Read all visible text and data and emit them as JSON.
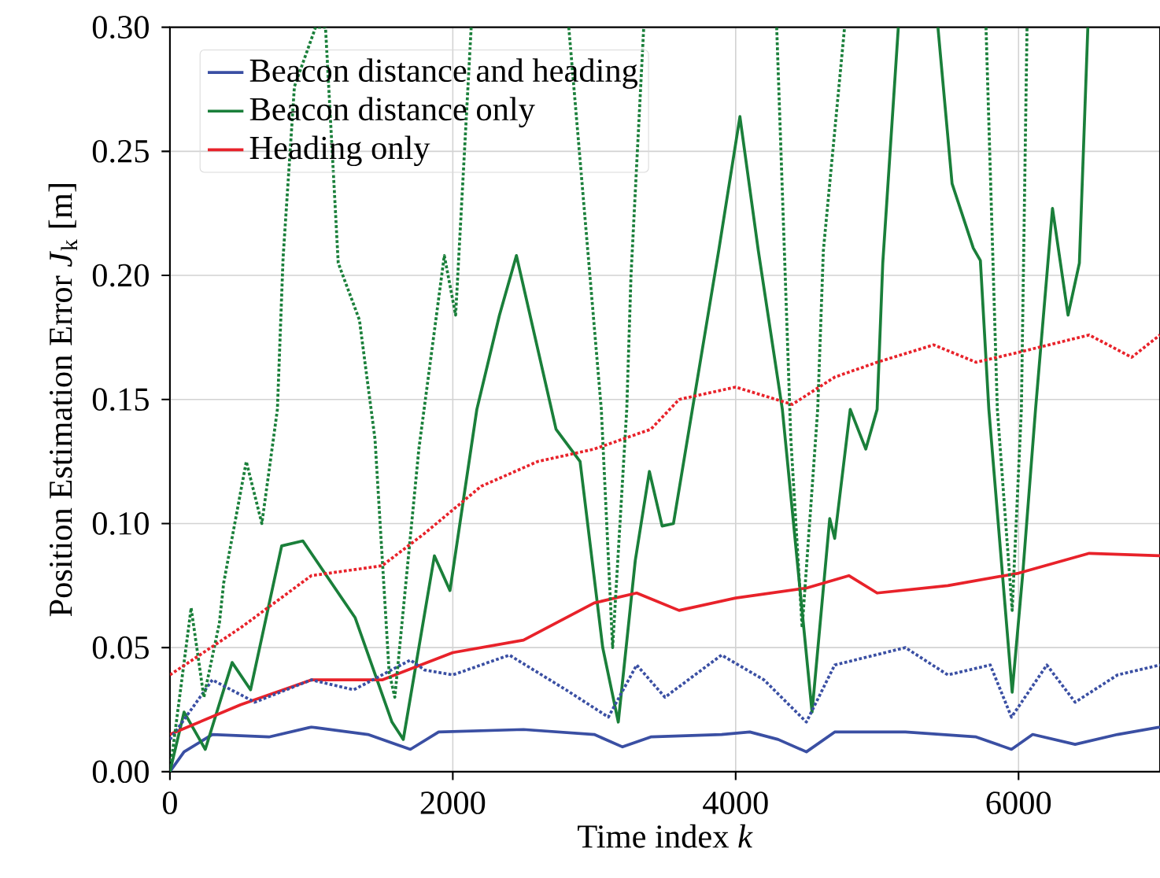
{
  "chart_data": {
    "type": "line",
    "xlabel": "Time index *k*",
    "ylabel": "Position Estimation Error *J*$_{k}$ [m]",
    "xlim": [
      0,
      7000
    ],
    "ylim": [
      0,
      0.3
    ],
    "xticks": [
      0,
      2000,
      4000,
      6000
    ],
    "yticks": [
      {
        "value": 0,
        "label": "0.00"
      },
      {
        "value": 0.05,
        "label": "0.05"
      },
      {
        "value": 0.1,
        "label": "0.10"
      },
      {
        "value": 0.15,
        "label": "0.15"
      },
      {
        "value": 0.2,
        "label": "0.20"
      },
      {
        "value": 0.25,
        "label": "0.25"
      },
      {
        "value": 0.3,
        "label": "0.30"
      }
    ],
    "grid": true,
    "legend": "top left",
    "marker": "none",
    "series": [
      {
        "name": "Beacon distance and heading",
        "color": "#3a4fa3",
        "line_style": "solid",
        "x": [
          0,
          100,
          300,
          700,
          1000,
          1400,
          1700,
          1900,
          2500,
          3000,
          3200,
          3400,
          3900,
          4100,
          4300,
          4500,
          4700,
          5200,
          5700,
          5950,
          6100,
          6400,
          6700,
          7000
        ],
        "values": [
          0.0,
          0.008,
          0.015,
          0.014,
          0.018,
          0.015,
          0.009,
          0.016,
          0.017,
          0.015,
          0.01,
          0.014,
          0.015,
          0.016,
          0.013,
          0.008,
          0.016,
          0.016,
          0.014,
          0.009,
          0.015,
          0.011,
          0.015,
          0.018
        ]
      },
      {
        "name": "Beacon distance only",
        "color": "#1a7f3a",
        "line_style": "solid",
        "x": [
          0,
          100,
          250,
          440,
          570,
          790,
          940,
          1310,
          1570,
          1650,
          1870,
          1980,
          2170,
          2330,
          2450,
          2730,
          2900,
          3060,
          3170,
          3290,
          3390,
          3480,
          3560,
          3880,
          4030,
          4160,
          4330,
          4540,
          4665,
          4700,
          4810,
          4920,
          5000,
          5040,
          5150,
          5300,
          5430,
          5530,
          5680,
          5730,
          5790,
          5955,
          6030,
          6120,
          6240,
          6350,
          6430,
          6490
        ],
        "values": [
          0.0,
          0.024,
          0.009,
          0.044,
          0.033,
          0.091,
          0.093,
          0.062,
          0.02,
          0.013,
          0.087,
          0.073,
          0.146,
          0.184,
          0.208,
          0.138,
          0.125,
          0.05,
          0.02,
          0.085,
          0.121,
          0.099,
          0.1,
          0.21,
          0.264,
          0.21,
          0.146,
          0.024,
          0.102,
          0.094,
          0.146,
          0.13,
          0.146,
          0.205,
          0.3,
          null,
          0.3,
          0.237,
          0.211,
          0.206,
          0.146,
          0.032,
          0.08,
          0.146,
          0.227,
          0.184,
          0.205,
          0.3
        ]
      },
      {
        "name": "Heading only",
        "color": "#e8222a",
        "line_style": "solid",
        "x": [
          0,
          500,
          1000,
          1500,
          2000,
          2500,
          3000,
          3300,
          3600,
          4000,
          4500,
          4800,
          5000,
          5500,
          6000,
          6500,
          7000
        ],
        "values": [
          0.015,
          0.027,
          0.037,
          0.037,
          0.048,
          0.053,
          0.068,
          0.072,
          0.065,
          0.07,
          0.074,
          0.079,
          0.072,
          0.075,
          0.08,
          0.088,
          0.087
        ]
      },
      {
        "color": "#3a4fa3",
        "line_style": "dotted",
        "x": [
          0,
          300,
          600,
          1000,
          1300,
          1700,
          1800,
          2000,
          2400,
          2800,
          3100,
          3300,
          3500,
          3900,
          4200,
          4500,
          4700,
          5200,
          5500,
          5800,
          5950,
          6200,
          6400,
          6700,
          7000
        ],
        "values": [
          0.013,
          0.037,
          0.028,
          0.037,
          0.033,
          0.045,
          0.041,
          0.039,
          0.047,
          0.033,
          0.022,
          0.043,
          0.03,
          0.047,
          0.037,
          0.02,
          0.043,
          0.05,
          0.039,
          0.043,
          0.022,
          0.043,
          0.028,
          0.039,
          0.043
        ]
      },
      {
        "color": "#1a7f3a",
        "line_style": "dotted",
        "x": [
          0,
          150,
          240,
          350,
          380,
          540,
          650,
          760,
          800,
          880,
          1030,
          1100,
          1190,
          1340,
          1450,
          1550,
          1590,
          1760,
          1940,
          2020,
          2130,
          2500,
          2820,
          3050,
          3130,
          3230,
          3260,
          3350,
          3800,
          4290,
          4390,
          4470,
          4580,
          4620,
          4770,
          5200,
          5770,
          5850,
          5955,
          6020,
          6060
        ],
        "values": [
          0.0,
          0.066,
          0.03,
          0.06,
          0.076,
          0.125,
          0.1,
          0.146,
          0.207,
          0.276,
          0.3,
          0.3,
          0.205,
          0.182,
          0.134,
          0.04,
          0.03,
          0.13,
          0.208,
          0.184,
          0.3,
          null,
          0.3,
          0.146,
          0.05,
          0.146,
          0.2,
          0.3,
          null,
          0.3,
          0.134,
          0.058,
          0.146,
          0.21,
          0.3,
          null,
          0.3,
          0.146,
          0.065,
          0.146,
          0.3
        ]
      },
      {
        "color": "#e8222a",
        "line_style": "dotted",
        "x": [
          0,
          500,
          1000,
          1500,
          1800,
          2200,
          2600,
          3000,
          3400,
          3600,
          4000,
          4400,
          4700,
          5000,
          5400,
          5700,
          6000,
          6500,
          6800,
          7000
        ],
        "values": [
          0.039,
          0.058,
          0.079,
          0.083,
          0.096,
          0.115,
          0.125,
          0.13,
          0.138,
          0.15,
          0.155,
          0.148,
          0.159,
          0.165,
          0.172,
          0.165,
          0.169,
          0.176,
          0.167,
          0.176
        ]
      }
    ]
  }
}
